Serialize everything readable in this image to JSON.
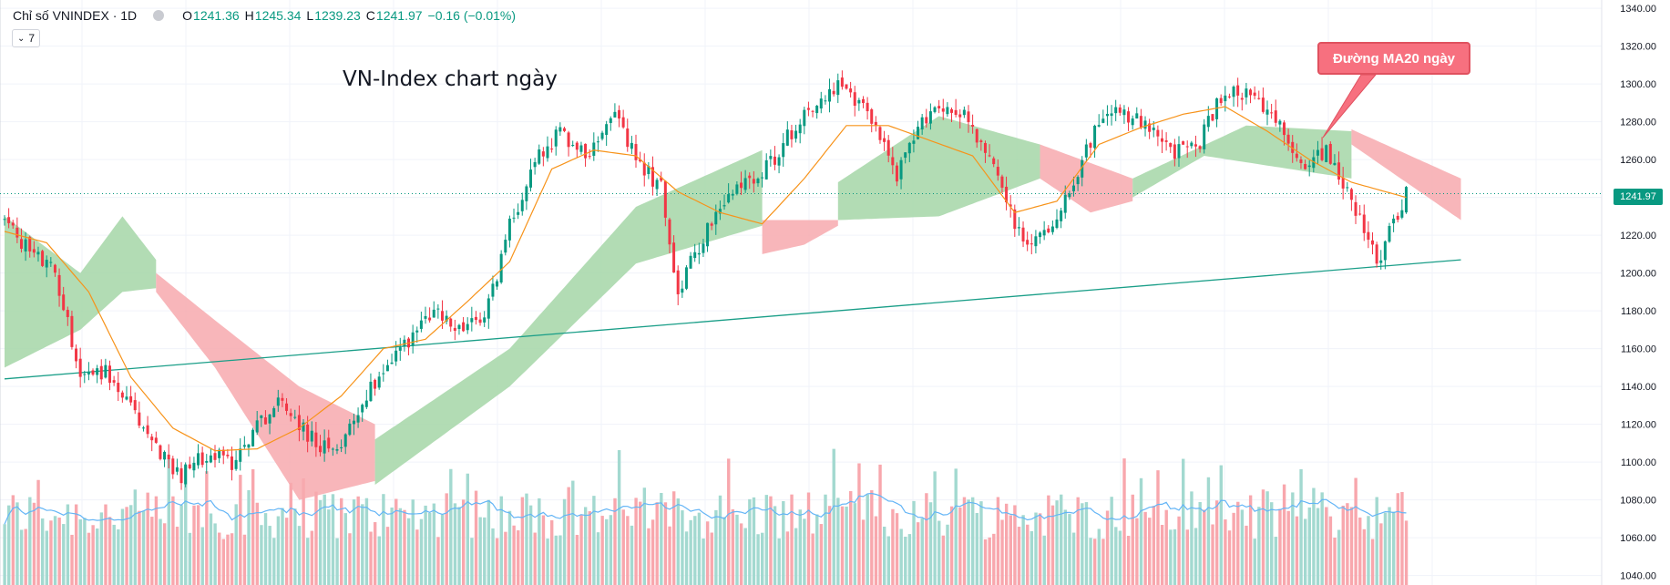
{
  "header": {
    "symbol": "Chỉ số VNINDEX · 1D",
    "open_label": "O",
    "open": "1241.36",
    "high_label": "H",
    "high": "1245.34",
    "low_label": "L",
    "low": "1239.23",
    "close_label": "C",
    "close": "1241.97",
    "change": "−0.16 (−0.01%)",
    "indicator_count": "7"
  },
  "annotations": {
    "title": "VN-Index chart ngày",
    "callout": "Đường MA20 ngày"
  },
  "colors": {
    "up": "#089981",
    "down": "#f23645",
    "ma20": "#f7931a",
    "trendline": "#1a9e88",
    "cloud_bull": "#a5d6a7",
    "cloud_bear": "#f7a9ae",
    "vol_up": "#a3d9d0",
    "vol_down": "#f8a7ad",
    "vol_ma": "#64b5f6"
  },
  "chart_data": {
    "type": "candlestick",
    "title": "VN-Index chart ngày",
    "timeframe": "1D",
    "ylim": [
      1035,
      1342
    ],
    "y_ticks": [
      "1340.00",
      "1320.00",
      "1300.00",
      "1280.00",
      "1260.00",
      "1240.00",
      "1220.00",
      "1200.00",
      "1180.00",
      "1160.00",
      "1140.00",
      "1120.00",
      "1100.00",
      "1080.00",
      "1060.00",
      "1040.00"
    ],
    "last_price": "1241.97",
    "price_anchors": [
      [
        0,
        1228
      ],
      [
        6,
        1212
      ],
      [
        12,
        1200
      ],
      [
        18,
        1147
      ],
      [
        24,
        1148
      ],
      [
        30,
        1128
      ],
      [
        36,
        1108
      ],
      [
        42,
        1093
      ],
      [
        48,
        1105
      ],
      [
        54,
        1100
      ],
      [
        60,
        1120
      ],
      [
        66,
        1133
      ],
      [
        72,
        1115
      ],
      [
        78,
        1103
      ],
      [
        84,
        1128
      ],
      [
        90,
        1150
      ],
      [
        96,
        1165
      ],
      [
        102,
        1180
      ],
      [
        108,
        1170
      ],
      [
        114,
        1175
      ],
      [
        120,
        1225
      ],
      [
        126,
        1260
      ],
      [
        132,
        1275
      ],
      [
        138,
        1262
      ],
      [
        144,
        1286
      ],
      [
        150,
        1260
      ],
      [
        156,
        1245
      ],
      [
        160,
        1190
      ],
      [
        166,
        1220
      ],
      [
        174,
        1245
      ],
      [
        182,
        1258
      ],
      [
        190,
        1285
      ],
      [
        198,
        1298
      ],
      [
        206,
        1283
      ],
      [
        212,
        1252
      ],
      [
        220,
        1288
      ],
      [
        228,
        1285
      ],
      [
        236,
        1250
      ],
      [
        242,
        1215
      ],
      [
        248,
        1223
      ],
      [
        254,
        1250
      ],
      [
        260,
        1280
      ],
      [
        266,
        1285
      ],
      [
        272,
        1275
      ],
      [
        278,
        1263
      ],
      [
        284,
        1270
      ],
      [
        290,
        1297
      ],
      [
        296,
        1293
      ],
      [
        302,
        1280
      ],
      [
        308,
        1258
      ],
      [
        314,
        1265
      ],
      [
        320,
        1240
      ],
      [
        326,
        1205
      ],
      [
        330,
        1228
      ],
      [
        333,
        1242
      ]
    ],
    "ma20_anchors": [
      [
        0,
        1222
      ],
      [
        10,
        1216
      ],
      [
        20,
        1190
      ],
      [
        30,
        1145
      ],
      [
        40,
        1118
      ],
      [
        50,
        1106
      ],
      [
        60,
        1107
      ],
      [
        70,
        1118
      ],
      [
        80,
        1135
      ],
      [
        90,
        1160
      ],
      [
        100,
        1165
      ],
      [
        110,
        1185
      ],
      [
        120,
        1206
      ],
      [
        130,
        1255
      ],
      [
        140,
        1265
      ],
      [
        150,
        1262
      ],
      [
        160,
        1243
      ],
      [
        170,
        1232
      ],
      [
        180,
        1226
      ],
      [
        190,
        1250
      ],
      [
        200,
        1278
      ],
      [
        210,
        1278
      ],
      [
        220,
        1270
      ],
      [
        230,
        1262
      ],
      [
        240,
        1232
      ],
      [
        250,
        1238
      ],
      [
        260,
        1268
      ],
      [
        270,
        1277
      ],
      [
        280,
        1284
      ],
      [
        290,
        1288
      ],
      [
        300,
        1275
      ],
      [
        310,
        1260
      ],
      [
        320,
        1248
      ],
      [
        333,
        1240
      ]
    ],
    "ichimoku_cloud": [
      {
        "sentiment": "bullish",
        "x_range": [
          0,
          36
        ],
        "top_anchors": [
          [
            0,
            1230
          ],
          [
            18,
            1200
          ],
          [
            28,
            1230
          ],
          [
            36,
            1207
          ]
        ],
        "bottom_anchors": [
          [
            0,
            1150
          ],
          [
            18,
            1170
          ],
          [
            28,
            1190
          ],
          [
            36,
            1192
          ]
        ]
      },
      {
        "sentiment": "bearish",
        "x_range": [
          36,
          88
        ],
        "top_anchors": [
          [
            36,
            1200
          ],
          [
            50,
            1175
          ],
          [
            70,
            1140
          ],
          [
            88,
            1120
          ]
        ],
        "bottom_anchors": [
          [
            36,
            1190
          ],
          [
            50,
            1150
          ],
          [
            70,
            1080
          ],
          [
            88,
            1090
          ]
        ]
      },
      {
        "sentiment": "bullish",
        "x_range": [
          88,
          180
        ],
        "top_anchors": [
          [
            88,
            1112
          ],
          [
            120,
            1160
          ],
          [
            150,
            1235
          ],
          [
            180,
            1265
          ]
        ],
        "bottom_anchors": [
          [
            88,
            1088
          ],
          [
            120,
            1140
          ],
          [
            150,
            1205
          ],
          [
            180,
            1225
          ]
        ]
      },
      {
        "sentiment": "bearish",
        "x_range": [
          180,
          198
        ],
        "top_anchors": [
          [
            180,
            1228
          ],
          [
            198,
            1228
          ]
        ],
        "bottom_anchors": [
          [
            180,
            1210
          ],
          [
            190,
            1215
          ],
          [
            198,
            1225
          ]
        ]
      },
      {
        "sentiment": "bullish",
        "x_range": [
          198,
          246
        ],
        "top_anchors": [
          [
            198,
            1248
          ],
          [
            222,
            1283
          ],
          [
            246,
            1268
          ]
        ],
        "bottom_anchors": [
          [
            198,
            1228
          ],
          [
            222,
            1230
          ],
          [
            246,
            1250
          ]
        ]
      },
      {
        "sentiment": "bearish",
        "x_range": [
          246,
          268
        ],
        "top_anchors": [
          [
            246,
            1268
          ],
          [
            268,
            1250
          ]
        ],
        "bottom_anchors": [
          [
            246,
            1250
          ],
          [
            258,
            1232
          ],
          [
            268,
            1238
          ]
        ]
      },
      {
        "sentiment": "bullish",
        "x_range": [
          268,
          320
        ],
        "top_anchors": [
          [
            268,
            1250
          ],
          [
            295,
            1278
          ],
          [
            320,
            1275
          ]
        ],
        "bottom_anchors": [
          [
            268,
            1240
          ],
          [
            285,
            1262
          ],
          [
            320,
            1250
          ]
        ]
      },
      {
        "sentiment": "bearish",
        "x_range": [
          320,
          346
        ],
        "top_anchors": [
          [
            320,
            1276
          ],
          [
            346,
            1250
          ]
        ],
        "bottom_anchors": [
          [
            320,
            1268
          ],
          [
            346,
            1228
          ]
        ]
      }
    ],
    "trendline": {
      "start": [
        0,
        1144
      ],
      "end": [
        346,
        1207
      ]
    },
    "volume": {
      "up_color": "volume up",
      "down_color": "volume down",
      "ma_line": "volume moving average"
    },
    "annotation_text": [
      "VN-Index chart ngày",
      "Đường MA20 ngày"
    ]
  }
}
